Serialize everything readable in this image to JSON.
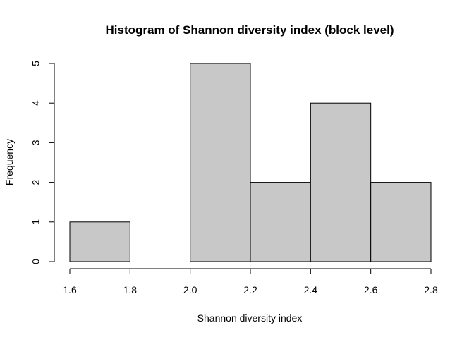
{
  "chart_data": {
    "type": "bar",
    "title": "Histogram of Shannon diversity index (block level)",
    "xlabel": "Shannon diversity index",
    "ylabel": "Frequency",
    "bins": [
      {
        "start": 1.6,
        "end": 1.8,
        "count": 1
      },
      {
        "start": 1.8,
        "end": 2.0,
        "count": 0
      },
      {
        "start": 2.0,
        "end": 2.2,
        "count": 5
      },
      {
        "start": 2.2,
        "end": 2.4,
        "count": 2
      },
      {
        "start": 2.4,
        "end": 2.6,
        "count": 4
      },
      {
        "start": 2.6,
        "end": 2.8,
        "count": 2
      }
    ],
    "xlim": [
      1.6,
      2.8
    ],
    "ylim": [
      0,
      5
    ],
    "x_ticks": [
      "1.6",
      "1.8",
      "2.0",
      "2.2",
      "2.4",
      "2.6",
      "2.8"
    ],
    "y_ticks": [
      "0",
      "1",
      "2",
      "3",
      "4",
      "5"
    ],
    "grid": false,
    "bar_fill": "#c8c8c8",
    "bar_stroke": "#000000"
  }
}
